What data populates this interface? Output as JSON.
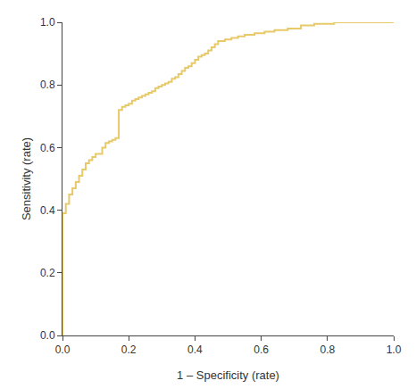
{
  "chart_data": {
    "type": "line",
    "xlabel": "1 – Specificity (rate)",
    "ylabel": "Sensitivity (rate)",
    "color": "#E8C96A",
    "line_style": "steps",
    "grid": false,
    "xlim": [
      0.0,
      1.0
    ],
    "ylim": [
      0.0,
      1.0
    ],
    "xticks": [
      {
        "value": 0.0,
        "label": "0.0"
      },
      0.2,
      0.4,
      0.6,
      0.8,
      {
        "value": 1.0,
        "label": "1.0"
      }
    ],
    "yticks": [
      {
        "value": 0.0,
        "label": "0.0"
      },
      0.2,
      0.4,
      0.6,
      0.8,
      {
        "value": 1.0,
        "label": "1.0"
      }
    ],
    "x": [
      0.0,
      0.0,
      0.0,
      0.0,
      0.0,
      0.01,
      0.01,
      0.02,
      0.02,
      0.03,
      0.03,
      0.04,
      0.04,
      0.05,
      0.05,
      0.06,
      0.06,
      0.07,
      0.07,
      0.08,
      0.08,
      0.09,
      0.09,
      0.1,
      0.1,
      0.11,
      0.12,
      0.13,
      0.14,
      0.15,
      0.16,
      0.17,
      0.18,
      0.19,
      0.2,
      0.21,
      0.22,
      0.23,
      0.24,
      0.25,
      0.26,
      0.27,
      0.28,
      0.29,
      0.3,
      0.31,
      0.32,
      0.33,
      0.34,
      0.35,
      0.36,
      0.37,
      0.38,
      0.39,
      0.4,
      0.41,
      0.42,
      0.43,
      0.44,
      0.45,
      0.46,
      0.47,
      0.49,
      0.51,
      0.53,
      0.55,
      0.58,
      0.61,
      0.64,
      0.68,
      0.72,
      0.76,
      0.82,
      0.88,
      1.0
    ],
    "values": [
      0.0,
      0.13,
      0.155,
      0.18,
      0.39,
      0.39,
      0.42,
      0.42,
      0.45,
      0.45,
      0.47,
      0.47,
      0.49,
      0.49,
      0.51,
      0.51,
      0.53,
      0.53,
      0.55,
      0.55,
      0.56,
      0.56,
      0.57,
      0.57,
      0.58,
      0.58,
      0.6,
      0.615,
      0.62,
      0.625,
      0.63,
      0.72,
      0.73,
      0.735,
      0.74,
      0.75,
      0.755,
      0.76,
      0.765,
      0.77,
      0.775,
      0.78,
      0.79,
      0.795,
      0.8,
      0.805,
      0.81,
      0.82,
      0.825,
      0.835,
      0.845,
      0.855,
      0.86,
      0.87,
      0.88,
      0.89,
      0.895,
      0.9,
      0.91,
      0.92,
      0.93,
      0.94,
      0.945,
      0.95,
      0.955,
      0.96,
      0.965,
      0.97,
      0.975,
      0.98,
      0.99,
      0.995,
      1.0,
      1.0,
      1.0
    ]
  }
}
